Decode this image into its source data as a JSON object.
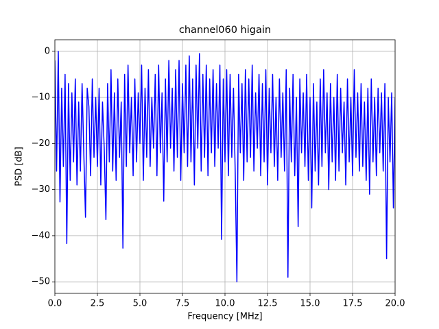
{
  "chart_data": {
    "type": "line",
    "title": "channel060 higain",
    "xlabel": "Frequency [MHz]",
    "ylabel": "PSD [dB]",
    "xlim": [
      0,
      20
    ],
    "ylim": [
      -52.5,
      2.5
    ],
    "xticks": [
      {
        "value": 0,
        "label": "0.0"
      },
      2.5,
      {
        "value": 5,
        "label": "5.0"
      },
      7.5,
      {
        "value": 10,
        "label": "10.0"
      },
      12.5,
      {
        "value": 15,
        "label": "15.0"
      },
      17.5,
      {
        "value": 20,
        "label": "20.0"
      }
    ],
    "yticks": [
      {
        "value": -50,
        "label": "−50"
      },
      {
        "value": -40,
        "label": "−40"
      },
      {
        "value": -30,
        "label": "−30"
      },
      {
        "value": -20,
        "label": "−20"
      },
      {
        "value": -10,
        "label": "−10"
      },
      0
    ],
    "grid": true,
    "x": [
      0,
      0.1,
      0.2,
      0.3,
      0.4,
      0.5,
      0.6,
      0.7,
      0.8,
      0.9,
      1,
      1.1,
      1.2,
      1.3,
      1.4,
      1.5,
      1.6,
      1.7,
      1.8,
      1.9,
      2,
      2.1,
      2.2,
      2.3,
      2.4,
      2.5,
      2.6,
      2.7,
      2.8,
      2.9,
      3,
      3.1,
      3.2,
      3.3,
      3.4,
      3.5,
      3.6,
      3.7,
      3.8,
      3.9,
      4,
      4.1,
      4.2,
      4.3,
      4.4,
      4.5,
      4.6,
      4.7,
      4.8,
      4.9,
      5,
      5.1,
      5.2,
      5.3,
      5.4,
      5.5,
      5.6,
      5.7,
      5.8,
      5.9,
      6,
      6.1,
      6.2,
      6.3,
      6.4,
      6.5,
      6.6,
      6.7,
      6.8,
      6.9,
      7,
      7.1,
      7.2,
      7.3,
      7.4,
      7.5,
      7.6,
      7.7,
      7.8,
      7.9,
      8,
      8.1,
      8.2,
      8.3,
      8.4,
      8.5,
      8.6,
      8.7,
      8.8,
      8.9,
      9,
      9.1,
      9.2,
      9.3,
      9.4,
      9.5,
      9.6,
      9.7,
      9.8,
      9.9,
      10,
      10.1,
      10.2,
      10.3,
      10.4,
      10.5,
      10.6,
      10.7,
      10.8,
      10.9,
      11,
      11.1,
      11.2,
      11.3,
      11.4,
      11.5,
      11.6,
      11.7,
      11.8,
      11.9,
      12,
      12.1,
      12.2,
      12.3,
      12.4,
      12.5,
      12.6,
      12.7,
      12.8,
      12.9,
      13,
      13.1,
      13.2,
      13.3,
      13.4,
      13.5,
      13.6,
      13.7,
      13.8,
      13.9,
      14,
      14.1,
      14.2,
      14.3,
      14.4,
      14.5,
      14.6,
      14.7,
      14.8,
      14.9,
      15,
      15.1,
      15.2,
      15.3,
      15.4,
      15.5,
      15.6,
      15.7,
      15.8,
      15.9,
      16,
      16.1,
      16.2,
      16.3,
      16.4,
      16.5,
      16.6,
      16.7,
      16.8,
      16.9,
      17,
      17.1,
      17.2,
      17.3,
      17.4,
      17.5,
      17.6,
      17.7,
      17.8,
      17.9,
      18,
      18.1,
      18.2,
      18.3,
      18.4,
      18.5,
      18.6,
      18.7,
      18.8,
      18.9,
      19,
      19.1,
      19.2,
      19.3,
      19.4,
      19.5,
      19.6,
      19.7,
      19.8,
      19.9,
      20
    ],
    "series": [
      {
        "color": "#0000ff",
        "values": [
          -2,
          -26,
          0,
          -32.7,
          -8,
          -25,
          -5,
          -41.7,
          -7,
          -28,
          -9,
          -24,
          -6,
          -29,
          -11,
          -26,
          -7,
          -22,
          -36,
          -8,
          -12,
          -27,
          -6,
          -23,
          -10,
          -25,
          -8,
          -29,
          -11,
          -21,
          -36.5,
          -7,
          -24,
          -4,
          -26,
          -9,
          -28,
          -6,
          -23,
          -11,
          -42.7,
          -5,
          -25,
          -3,
          -22,
          -10,
          -27,
          -6,
          -24,
          -9,
          -20,
          -3,
          -28,
          -8,
          -23,
          -4,
          -25,
          -10,
          -21,
          -5,
          -27,
          -3,
          -22,
          -9,
          -32.5,
          -6,
          -24,
          -2,
          -21,
          -8,
          -26,
          -4,
          -23,
          -2,
          -28,
          -7,
          -22,
          -3,
          -25,
          -1,
          -24,
          -6,
          -29,
          -3,
          -21,
          -0.5,
          -26,
          -5,
          -23,
          -3,
          -27,
          -6,
          -22,
          -4,
          -25,
          -7,
          -21,
          -3,
          -40.8,
          -6,
          -24,
          -4,
          -27,
          -5,
          -23,
          -8,
          -26,
          -50,
          -5,
          -22,
          -7,
          -28,
          -4,
          -24,
          -6,
          -23,
          -3,
          -26,
          -9,
          -21,
          -5,
          -27,
          -7,
          -24,
          -4,
          -29,
          -8,
          -22,
          -5,
          -25,
          -10,
          -28,
          -6,
          -23,
          -9,
          -26,
          -4,
          -49,
          -8,
          -24,
          -5,
          -27,
          -10,
          -38,
          -6,
          -22,
          -9,
          -25,
          -5,
          -28,
          -10,
          -34,
          -7,
          -26,
          -11,
          -29,
          -6,
          -25,
          -4,
          -22,
          -9,
          -30,
          -7,
          -24,
          -10,
          -28,
          -5,
          -26,
          -8,
          -22,
          -11,
          -29,
          -6,
          -24,
          -10,
          -27,
          -4,
          -23,
          -9,
          -26,
          -7,
          -25,
          -11,
          -28,
          -8,
          -31,
          -6,
          -24,
          -10,
          -27,
          -8,
          -22,
          -9,
          -26,
          -7,
          -45,
          -10,
          -24,
          -9,
          -34,
          -10
        ]
      }
    ]
  }
}
